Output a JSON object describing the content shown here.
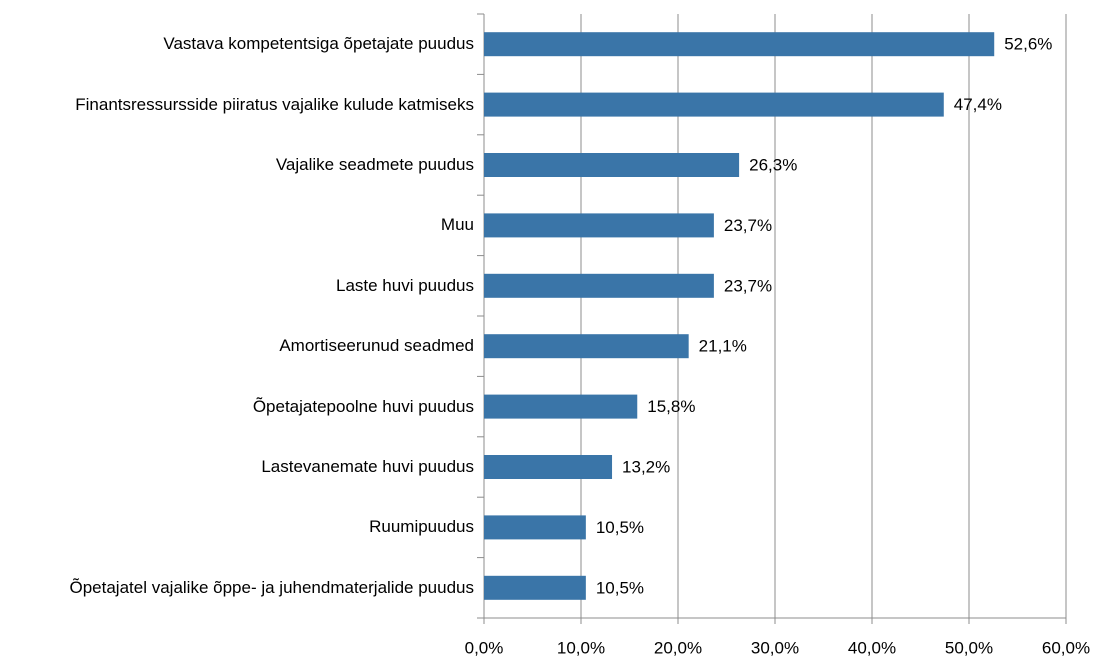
{
  "chart_data": {
    "type": "bar",
    "orientation": "horizontal",
    "categories": [
      "Vastava kompetentsiga õpetajate puudus",
      "Finantsressursside piiratus vajalike kulude katmiseks",
      "Vajalike seadmete puudus",
      "Muu",
      "Laste huvi puudus",
      "Amortiseerunud seadmed",
      "Õpetajatepoolne huvi puudus",
      "Lastevanemate huvi puudus",
      "Ruumipuudus",
      "Õpetajatel vajalike õppe- ja juhendmaterjalide puudus"
    ],
    "values": [
      52.6,
      47.4,
      26.3,
      23.7,
      23.7,
      21.1,
      15.8,
      13.2,
      10.5,
      10.5
    ],
    "value_labels": [
      "52,6%",
      "47,4%",
      "26,3%",
      "23,7%",
      "23,7%",
      "21,1%",
      "15,8%",
      "13,2%",
      "10,5%",
      "10,5%"
    ],
    "color": "#3a75a8",
    "xlim": [
      0,
      60
    ],
    "xticks": [
      {
        "value": 0,
        "label": "0,0%"
      },
      {
        "value": 10,
        "label": "10,0%"
      },
      {
        "value": 20,
        "label": "20,0%"
      },
      {
        "value": 30,
        "label": "30,0%"
      },
      {
        "value": 40,
        "label": "40,0%"
      },
      {
        "value": 50,
        "label": "50,0%"
      },
      {
        "value": 60,
        "label": "60,0%"
      }
    ],
    "grid": true
  }
}
